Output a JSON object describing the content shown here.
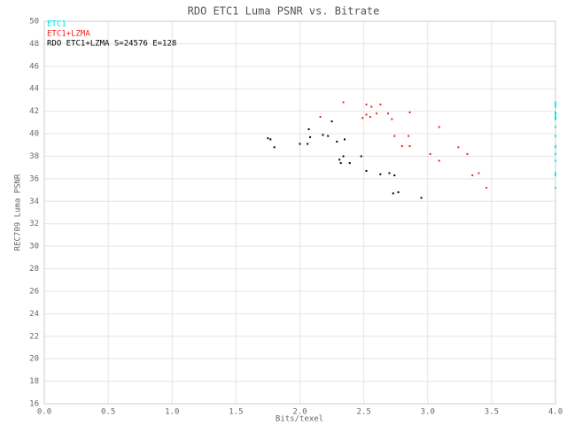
{
  "chart_data": {
    "type": "scatter",
    "title": "RDO ETC1 Luma PSNR vs. Bitrate",
    "x_label": "Bits/texel",
    "y_label": "REC709 Luma PSNR",
    "xlim": [
      0,
      4
    ],
    "ylim": [
      16,
      50
    ],
    "xticks": [
      {
        "value": 0,
        "label": "0.0"
      },
      0.5,
      {
        "value": 1,
        "label": "1.0"
      },
      1.5,
      {
        "value": 2,
        "label": "2.0"
      },
      2.5,
      {
        "value": 3,
        "label": "3.0"
      },
      3.5,
      {
        "value": 4,
        "label": "4.0"
      }
    ],
    "yticks": [
      16,
      18,
      20,
      22,
      24,
      26,
      28,
      30,
      32,
      34,
      36,
      38,
      40,
      42,
      44,
      46,
      48,
      50
    ],
    "grid": true,
    "legend": "upper left",
    "series": [
      {
        "name": "ETC1",
        "color": "#00e5e5",
        "x": [
          4,
          4,
          4,
          4,
          4,
          4,
          4,
          4,
          4,
          4,
          4,
          4,
          4,
          4,
          4,
          4,
          4,
          4,
          4,
          4,
          4,
          4,
          4,
          4
        ],
        "y": [
          41.5,
          42.8,
          41.4,
          42.6,
          41.7,
          41.5,
          42.4,
          41.8,
          42.6,
          41.8,
          41.3,
          39.8,
          38.9,
          39.8,
          41.9,
          38.9,
          38.2,
          40.6,
          37.6,
          38.8,
          38.2,
          36.3,
          36.5,
          35.2
        ]
      },
      {
        "name": "ETC1+LZMA",
        "color": "#ee2222",
        "x": [
          2.16,
          2.34,
          2.49,
          2.52,
          2.52,
          2.55,
          2.56,
          2.6,
          2.63,
          2.69,
          2.72,
          2.74,
          2.8,
          2.85,
          2.86,
          2.86,
          3.02,
          3.09,
          3.09,
          3.24,
          3.31,
          3.35,
          3.4,
          3.46
        ],
        "y": [
          41.5,
          42.8,
          41.4,
          42.6,
          41.7,
          41.5,
          42.4,
          41.8,
          42.6,
          41.8,
          41.3,
          39.8,
          38.9,
          39.8,
          41.9,
          38.9,
          38.2,
          40.6,
          37.6,
          38.8,
          38.2,
          36.3,
          36.5,
          35.2
        ]
      },
      {
        "name": "RDO ETC1+LZMA S=24576 E=128",
        "color": "#000000",
        "x": [
          1.75,
          1.77,
          1.8,
          2.0,
          2.06,
          2.07,
          2.08,
          2.18,
          2.22,
          2.25,
          2.29,
          2.31,
          2.32,
          2.34,
          2.35,
          2.39,
          2.48,
          2.52,
          2.63,
          2.7,
          2.74,
          2.73,
          2.77,
          2.95
        ],
        "y": [
          39.6,
          39.5,
          38.8,
          39.1,
          39.1,
          40.4,
          39.7,
          39.9,
          39.8,
          41.1,
          39.3,
          37.7,
          37.4,
          38.0,
          39.5,
          37.4,
          38.0,
          36.7,
          36.4,
          36.5,
          36.3,
          34.7,
          34.8,
          34.3
        ]
      }
    ]
  }
}
